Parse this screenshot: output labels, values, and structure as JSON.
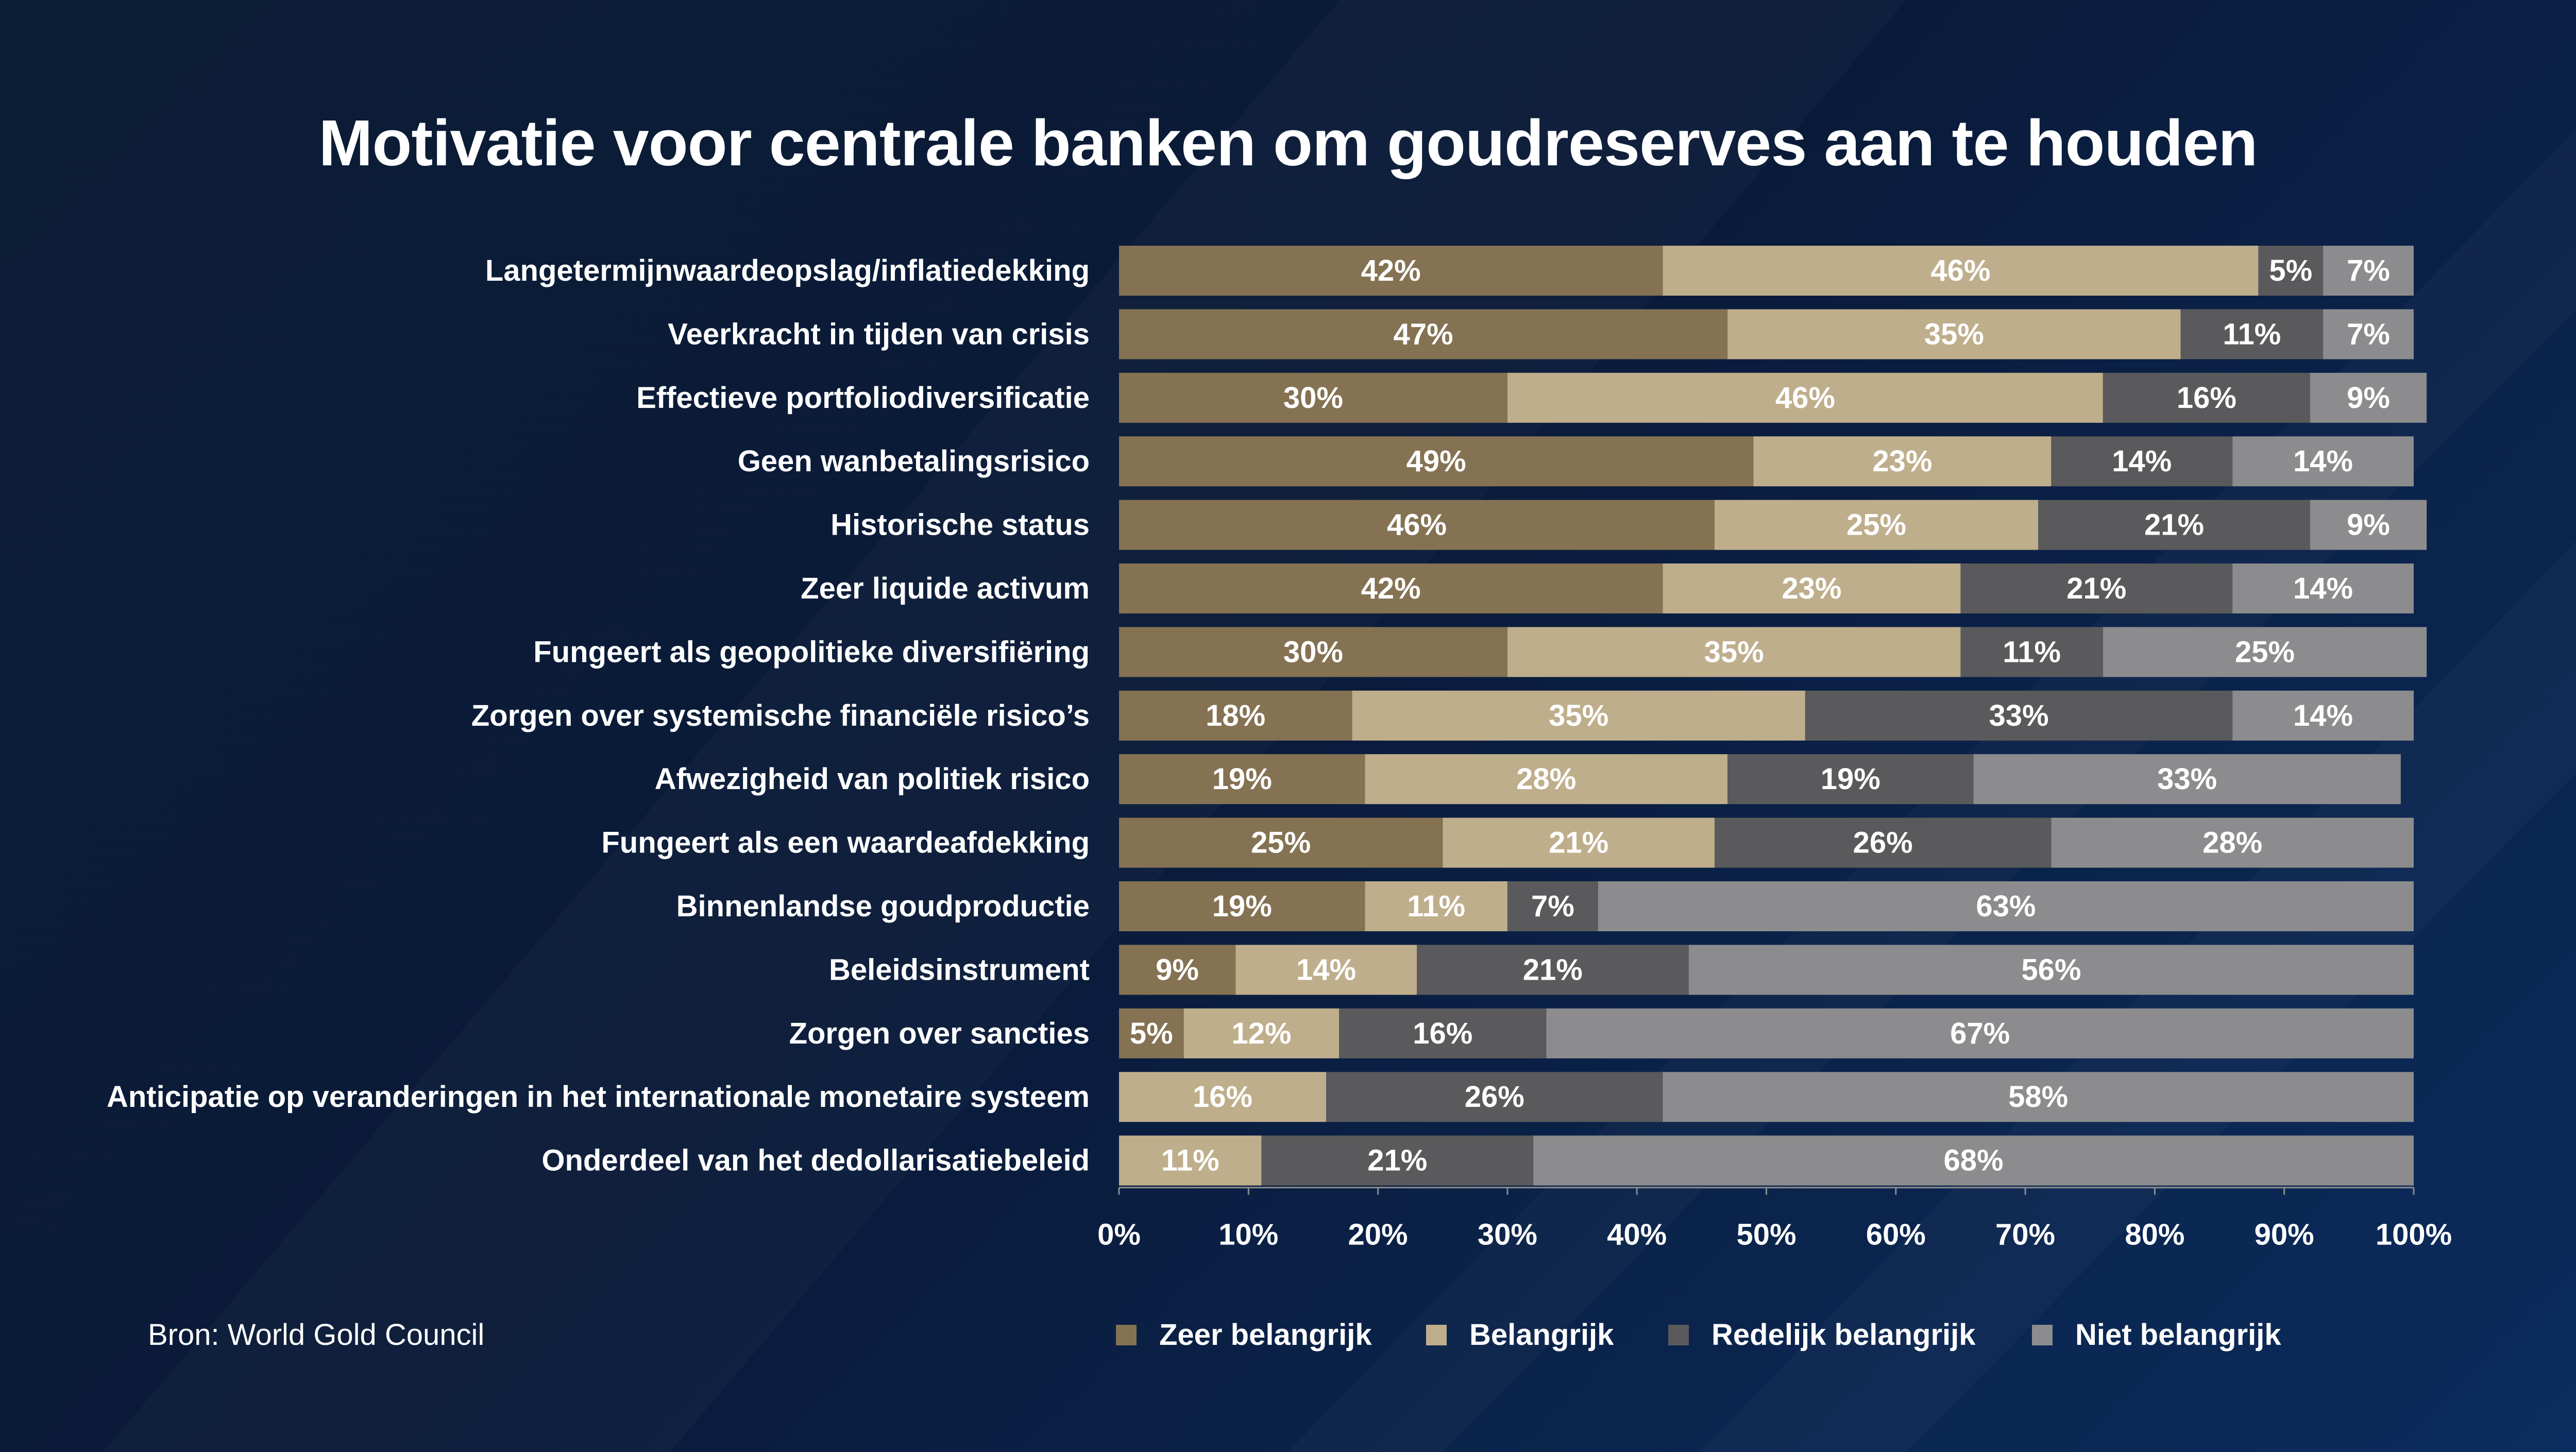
{
  "title": "Motivatie voor centrale banken om goudreserves aan te houden",
  "source": "Bron: World Gold Council",
  "colors": {
    "zeer_belangrijk": "#847253",
    "belangrijk": "#bfae8c",
    "redelijk_belangrijk": "#5a5a5c",
    "niet_belangrijk": "#8c8c8e"
  },
  "chart_data": {
    "type": "bar",
    "orientation": "horizontal",
    "stacked": true,
    "categories": [
      "Langetermijnwaardeopslag/inflatiedekking",
      "Veerkracht in tijden van crisis",
      "Effectieve portfoliodiversificatie",
      "Geen wanbetalingsrisico",
      "Historische status",
      "Zeer liquide activum",
      "Fungeert als geopolitieke diversifiëring",
      "Zorgen over systemische financiële risico’s",
      "Afwezigheid van politiek risico",
      "Fungeert als een waardeafdekking",
      "Binnenlandse goudproductie",
      "Beleidsinstrument",
      "Zorgen over sancties",
      "Anticipatie op veranderingen in het internationale monetaire systeem",
      "Onderdeel van het dedollarisatiebeleid"
    ],
    "series": [
      {
        "name": "Zeer belangrijk",
        "color": "#847253",
        "values": [
          42,
          47,
          30,
          49,
          46,
          42,
          30,
          18,
          19,
          25,
          19,
          9,
          5,
          0,
          0
        ]
      },
      {
        "name": "Belangrijk",
        "color": "#bfae8c",
        "values": [
          46,
          35,
          46,
          23,
          25,
          23,
          35,
          35,
          28,
          21,
          11,
          14,
          12,
          16,
          11
        ]
      },
      {
        "name": "Redelijk belangrijk",
        "color": "#5a5a5c",
        "values": [
          5,
          11,
          16,
          14,
          21,
          21,
          11,
          33,
          19,
          26,
          7,
          21,
          16,
          26,
          21
        ]
      },
      {
        "name": "Niet belangrijk",
        "color": "#8c8c8e",
        "values": [
          7,
          7,
          9,
          14,
          9,
          14,
          25,
          14,
          33,
          28,
          63,
          56,
          67,
          58,
          68
        ]
      }
    ],
    "xlim": [
      0,
      100
    ],
    "x_ticks": [
      "0%",
      "10%",
      "20%",
      "30%",
      "40%",
      "50%",
      "60%",
      "70%",
      "80%",
      "90%",
      "100%"
    ],
    "value_suffix": "%",
    "legend_position": "bottom"
  }
}
